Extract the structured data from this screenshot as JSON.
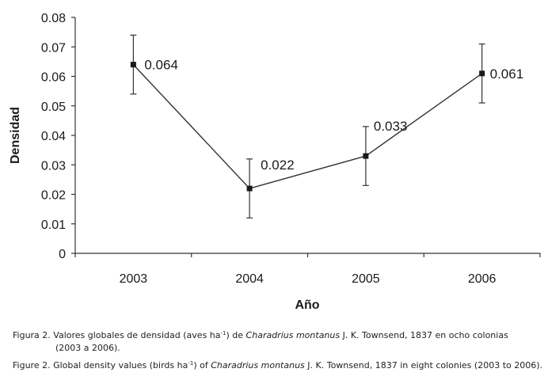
{
  "chart_data": {
    "type": "line",
    "categories": [
      "2003",
      "2004",
      "2005",
      "2006"
    ],
    "values": [
      0.064,
      0.022,
      0.033,
      0.061
    ],
    "error_bars": {
      "upper": [
        0.074,
        0.032,
        0.043,
        0.071
      ],
      "lower": [
        0.054,
        0.012,
        0.023,
        0.051
      ]
    },
    "data_labels": [
      "0.064",
      "0.022",
      "0.033",
      "0.061"
    ],
    "yticks": [
      "0",
      "0.01",
      "0.02",
      "0.03",
      "0.04",
      "0.05",
      "0.06",
      "0.07",
      "0.08"
    ],
    "ylim": [
      0,
      0.08
    ],
    "xlabel": "Año",
    "ylabel": "Densidad",
    "grid": false,
    "legend": "none",
    "line_color": "#333333",
    "marker_color": "#1a1a1a"
  },
  "caption": {
    "es": {
      "prefix": "Figura 2. Valores globales de densidad (aves ha",
      "sup": "-1",
      "mid": ") de ",
      "species": "Charadrius montanus",
      "suffix": " J. K. Townsend, 1837 en ocho colonias",
      "line2": "(2003 a 2006)."
    },
    "en": {
      "prefix": "Figure 2. Global density values (birds ha",
      "sup": "-1",
      "mid": ") of ",
      "species": "Charadrius montanus",
      "suffix": " J. K. Townsend, 1837 in eight colonies (2003 to 2006)."
    }
  }
}
